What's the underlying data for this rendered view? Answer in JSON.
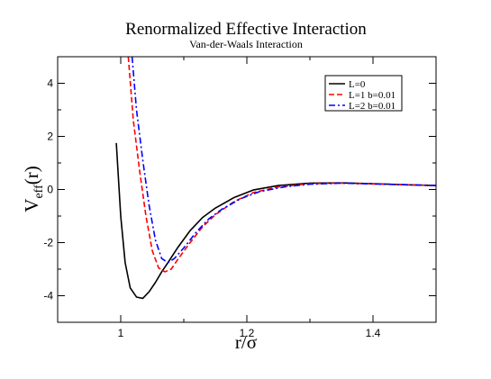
{
  "chart_data": {
    "type": "line",
    "title": "Renormalized Effective Interaction",
    "subtitle": "Van-der-Waals Interaction",
    "xlabel": "r/σ",
    "ylabel_main": "V",
    "ylabel_sub": "eff",
    "ylabel_tail": "(r)",
    "xlim": [
      0.9,
      1.5
    ],
    "ylim": [
      -5,
      5
    ],
    "xticks": [
      1,
      1.2,
      1.4
    ],
    "xtick_labels": [
      "1",
      "1.2",
      "1.4"
    ],
    "yticks": [
      -4,
      -2,
      0,
      2,
      4
    ],
    "ytick_labels": [
      "-4",
      "-2",
      "0",
      "2",
      "4"
    ],
    "legend_position": "top-right",
    "grid": false,
    "series": [
      {
        "name": "L=0",
        "color": "#000000",
        "dash": "solid",
        "x": [
          0.993,
          1.0,
          1.007,
          1.015,
          1.025,
          1.035,
          1.045,
          1.055,
          1.065,
          1.075,
          1.09,
          1.11,
          1.13,
          1.15,
          1.18,
          1.21,
          1.25,
          1.3,
          1.35,
          1.4,
          1.45,
          1.5
        ],
        "y": [
          1.75,
          -1.0,
          -2.75,
          -3.7,
          -4.05,
          -4.1,
          -3.85,
          -3.5,
          -3.1,
          -2.75,
          -2.2,
          -1.55,
          -1.05,
          -0.7,
          -0.3,
          -0.02,
          0.15,
          0.24,
          0.25,
          0.22,
          0.18,
          0.15
        ]
      },
      {
        "name": "L=1 b=0.01",
        "color": "#ff0000",
        "dash": "dashed",
        "x": [
          1.012,
          1.02,
          1.03,
          1.04,
          1.05,
          1.06,
          1.07,
          1.08,
          1.09,
          1.11,
          1.13,
          1.15,
          1.18,
          1.21,
          1.25,
          1.3,
          1.35,
          1.4,
          1.45,
          1.5
        ],
        "y": [
          5.0,
          2.6,
          0.7,
          -1.0,
          -2.3,
          -2.95,
          -3.1,
          -3.0,
          -2.65,
          -2.0,
          -1.4,
          -0.95,
          -0.45,
          -0.12,
          0.1,
          0.22,
          0.24,
          0.21,
          0.18,
          0.15
        ]
      },
      {
        "name": "L=2 b=0.01",
        "color": "#0000ff",
        "dash": "dashdot",
        "x": [
          1.018,
          1.025,
          1.035,
          1.045,
          1.055,
          1.065,
          1.075,
          1.085,
          1.1,
          1.12,
          1.14,
          1.16,
          1.19,
          1.22,
          1.26,
          1.3,
          1.35,
          1.4,
          1.45,
          1.5
        ],
        "y": [
          5.0,
          3.0,
          1.1,
          -0.6,
          -1.9,
          -2.6,
          -2.75,
          -2.6,
          -2.2,
          -1.6,
          -1.1,
          -0.75,
          -0.35,
          -0.08,
          0.1,
          0.2,
          0.24,
          0.21,
          0.18,
          0.15
        ]
      }
    ]
  }
}
